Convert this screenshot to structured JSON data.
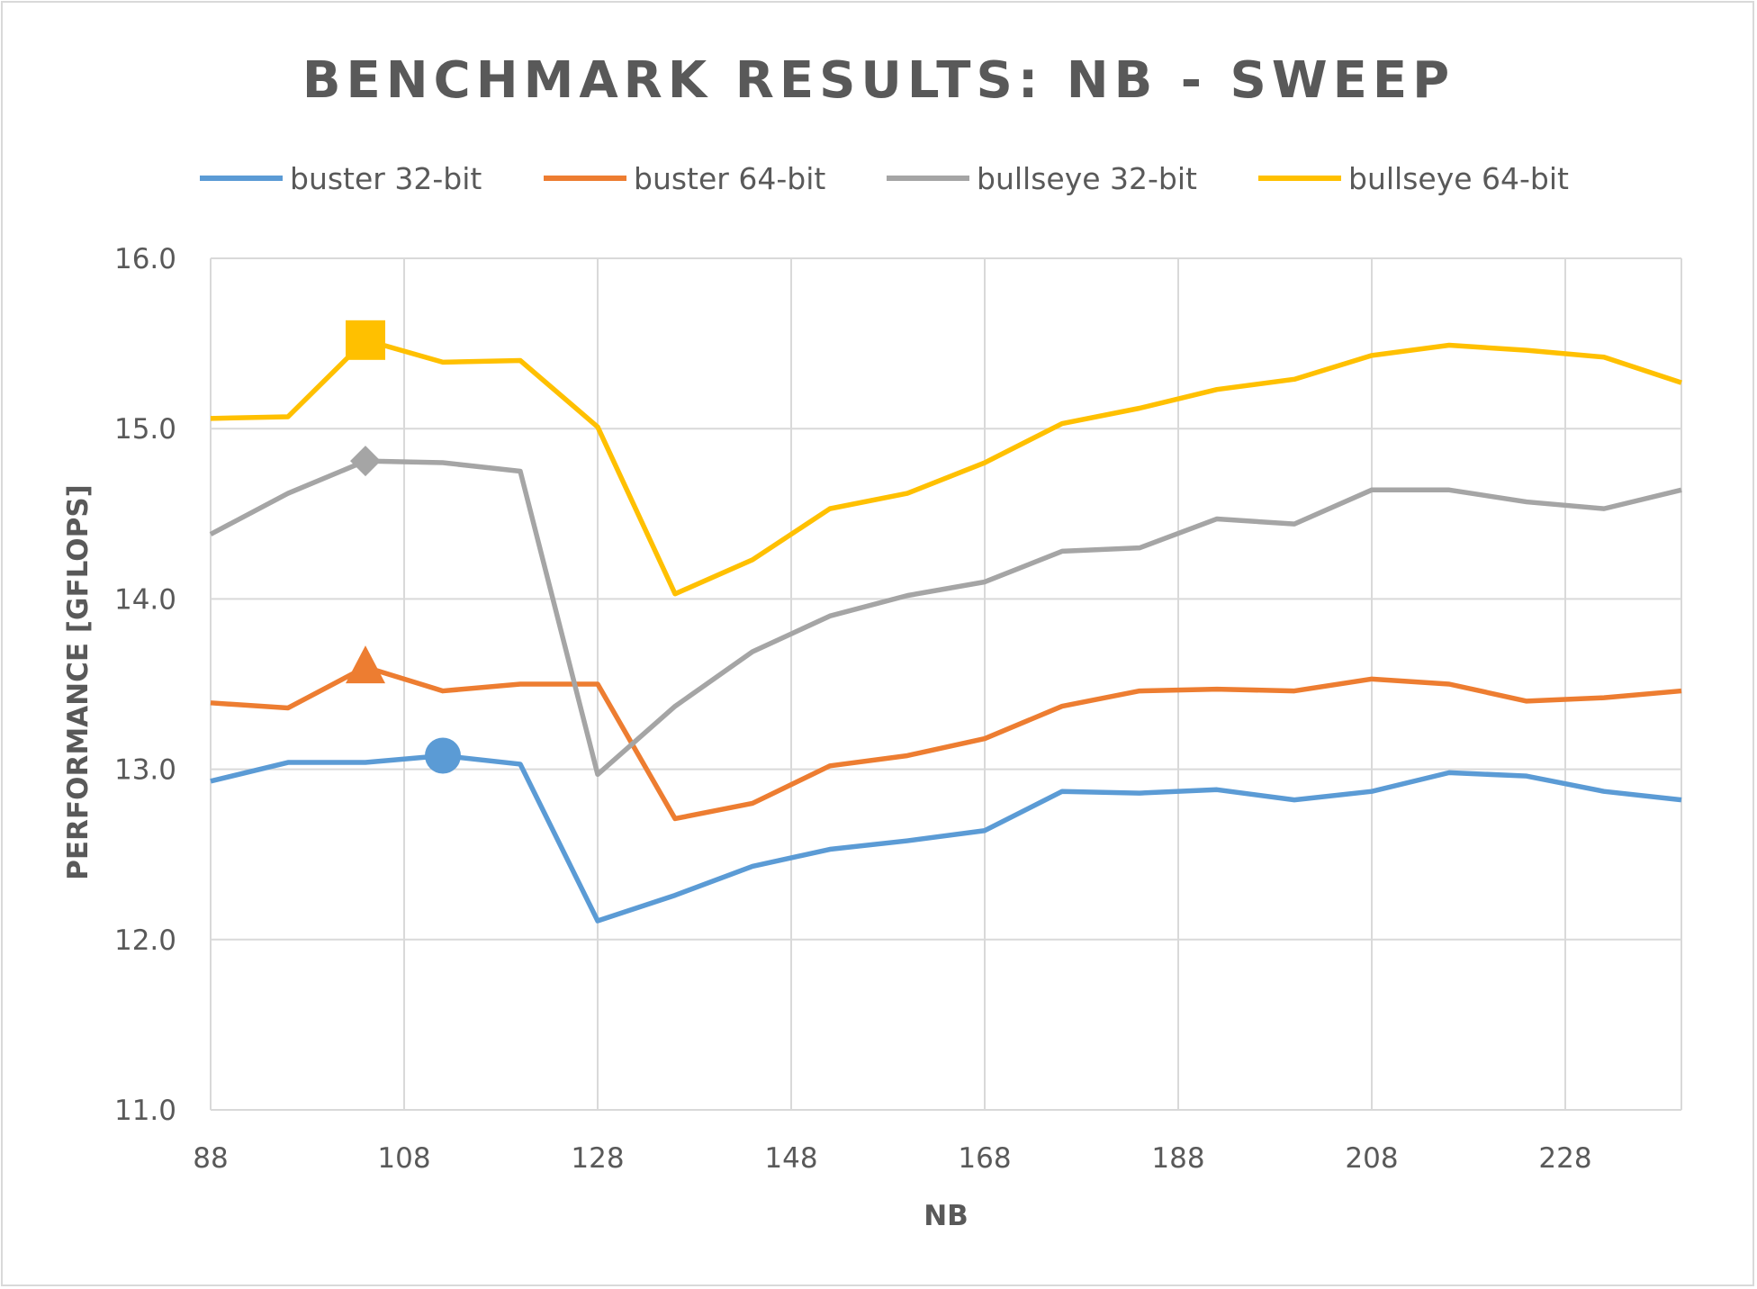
{
  "chart_data": {
    "type": "line",
    "title": "BENCHMARK RESULTS: NB - SWEEP",
    "xlabel": "NB",
    "ylabel": "PERFORMANCE [GFLOPS]",
    "xlim": [
      88,
      240
    ],
    "ylim": [
      11.0,
      16.0
    ],
    "x_ticks": [
      "88",
      "108",
      "128",
      "148",
      "168",
      "188",
      "208",
      "228"
    ],
    "y_ticks": [
      "11.0",
      "12.0",
      "13.0",
      "14.0",
      "15.0",
      "16.0"
    ],
    "grid": true,
    "legend_position": "top",
    "x": [
      88,
      96,
      104,
      112,
      120,
      128,
      136,
      144,
      152,
      160,
      168,
      176,
      184,
      192,
      200,
      208,
      216,
      224,
      232,
      240
    ],
    "series": [
      {
        "name": "buster 32-bit",
        "color": "#5b9bd5",
        "marker": "circle",
        "marker_index": 3,
        "values": [
          12.93,
          13.04,
          13.04,
          13.08,
          13.03,
          12.11,
          12.26,
          12.43,
          12.53,
          12.58,
          12.64,
          12.87,
          12.86,
          12.88,
          12.82,
          12.87,
          12.98,
          12.96,
          12.87,
          12.82
        ]
      },
      {
        "name": "buster 64-bit",
        "color": "#ed7d31",
        "marker": "triangle",
        "marker_index": 2,
        "values": [
          13.39,
          13.36,
          13.6,
          13.46,
          13.5,
          13.5,
          12.71,
          12.8,
          13.02,
          13.08,
          13.18,
          13.37,
          13.46,
          13.47,
          13.46,
          13.53,
          13.5,
          13.4,
          13.42,
          13.46
        ]
      },
      {
        "name": "bullseye 32-bit",
        "color": "#a5a5a5",
        "marker": "diamond",
        "marker_index": 2,
        "values": [
          14.38,
          14.62,
          14.81,
          14.8,
          14.75,
          12.97,
          13.37,
          13.69,
          13.9,
          14.02,
          14.1,
          14.28,
          14.3,
          14.47,
          14.44,
          14.64,
          14.64,
          14.57,
          14.53,
          14.64
        ]
      },
      {
        "name": "bullseye 64-bit",
        "color": "#ffc000",
        "marker": "square",
        "marker_index": 2,
        "values": [
          15.06,
          15.07,
          15.52,
          15.39,
          15.4,
          15.01,
          14.03,
          14.23,
          14.53,
          14.62,
          14.8,
          15.03,
          15.12,
          15.23,
          15.29,
          15.43,
          15.49,
          15.46,
          15.42,
          15.27
        ]
      }
    ]
  }
}
